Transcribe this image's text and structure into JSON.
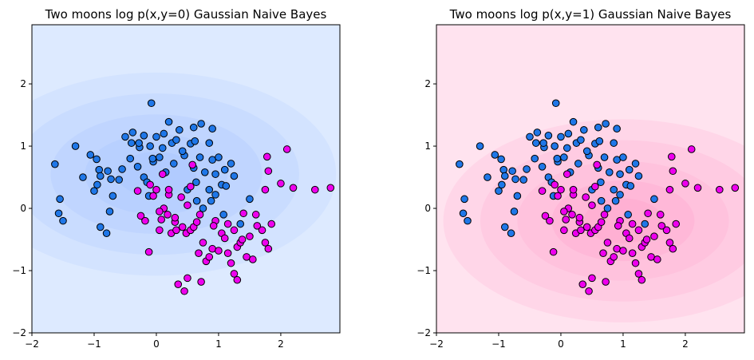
{
  "chart_data": [
    {
      "type": "scatter",
      "title": "Two moons log p(x,y=0) Gaussian Naive Bayes",
      "xlabel": "",
      "ylabel": "",
      "xlim": [
        -2,
        2.95
      ],
      "ylim": [
        -2,
        2.95
      ],
      "xticks": [
        -2,
        -1,
        0,
        1,
        2
      ],
      "yticks": [
        -2,
        -1,
        0,
        1,
        2
      ],
      "xtick_labels": [
        "−2",
        "−1",
        "0",
        "1",
        "2"
      ],
      "ytick_labels": [
        "−2",
        "−1",
        "0",
        "1",
        "2"
      ],
      "grid": false,
      "background": {
        "type": "contour",
        "center": [
          0.0,
          0.55
        ],
        "sd": [
          0.85,
          0.48
        ],
        "colors": [
          "#ddeaff",
          "#d3e3ff",
          "#c9dcff",
          "#c0d5ff",
          "#b8d0ff",
          "#b1cbff"
        ]
      },
      "series_colors": [
        "#1f77e8",
        "#ee00ee"
      ]
    },
    {
      "type": "scatter",
      "title": "Two moons log p(x,y=1) Gaussian Naive Bayes",
      "xlabel": "",
      "ylabel": "",
      "xlim": [
        -2,
        2.95
      ],
      "ylim": [
        -2,
        2.95
      ],
      "xticks": [
        -2,
        -1,
        0,
        1,
        2
      ],
      "yticks": [
        -2,
        -1,
        0,
        1,
        2
      ],
      "xtick_labels": [
        "−2",
        "−1",
        "0",
        "1",
        "2"
      ],
      "ytick_labels": [
        "−2",
        "−1",
        "0",
        "1",
        "2"
      ],
      "grid": false,
      "background": {
        "type": "contour",
        "center": [
          1.0,
          -0.2
        ],
        "sd": [
          0.85,
          0.48
        ],
        "colors": [
          "#ffe3ef",
          "#ffd6e8",
          "#ffcbe2",
          "#ffc2dd",
          "#ffb8d8",
          "#ffb0d3"
        ]
      },
      "series_colors": [
        "#1f77e8",
        "#ee00ee"
      ]
    }
  ],
  "points": {
    "class0": [
      [
        -1.63,
        0.71
      ],
      [
        -1.3,
        1.0
      ],
      [
        -1.18,
        0.5
      ],
      [
        -1.06,
        0.86
      ],
      [
        -0.96,
        0.79
      ],
      [
        -0.92,
        0.62
      ],
      [
        -1.0,
        0.28
      ],
      [
        -0.95,
        0.38
      ],
      [
        -0.9,
        0.52
      ],
      [
        -0.78,
        0.6
      ],
      [
        -0.73,
        0.47
      ],
      [
        -0.7,
        0.2
      ],
      [
        -0.6,
        0.46
      ],
      [
        -0.55,
        0.63
      ],
      [
        -0.42,
        0.8
      ],
      [
        -0.4,
        1.05
      ],
      [
        -0.38,
        1.22
      ],
      [
        -0.27,
        0.98
      ],
      [
        -0.3,
        0.67
      ],
      [
        -0.2,
        0.5
      ],
      [
        -0.2,
        1.17
      ],
      [
        -0.1,
        1.0
      ],
      [
        -0.05,
        0.75
      ],
      [
        0.05,
        0.82
      ],
      [
        -0.08,
        1.69
      ],
      [
        0.0,
        1.15
      ],
      [
        0.12,
        1.2
      ],
      [
        0.15,
        0.58
      ],
      [
        0.25,
        1.05
      ],
      [
        0.2,
        1.39
      ],
      [
        0.37,
        1.26
      ],
      [
        0.45,
        0.85
      ],
      [
        0.55,
        1.04
      ],
      [
        0.6,
        0.65
      ],
      [
        0.7,
        0.82
      ],
      [
        0.72,
        1.36
      ],
      [
        0.78,
        0.58
      ],
      [
        0.85,
        1.05
      ],
      [
        0.9,
        0.78
      ],
      [
        0.95,
        0.55
      ],
      [
        1.0,
        0.82
      ],
      [
        1.05,
        0.38
      ],
      [
        1.1,
        0.62
      ],
      [
        1.2,
        0.72
      ],
      [
        0.64,
        0.42
      ],
      [
        0.5,
        0.3
      ],
      [
        0.85,
        0.3
      ],
      [
        0.6,
        1.3
      ],
      [
        0.9,
        1.28
      ],
      [
        0.65,
        0.12
      ],
      [
        1.5,
        0.15
      ],
      [
        1.25,
        0.52
      ],
      [
        0.95,
        0.22
      ],
      [
        1.35,
        -0.25
      ],
      [
        -0.12,
        0.2
      ],
      [
        -1.55,
        0.15
      ],
      [
        -1.57,
        -0.08
      ],
      [
        -1.5,
        -0.2
      ],
      [
        -0.9,
        -0.3
      ],
      [
        -0.8,
        -0.4
      ],
      [
        -0.75,
        -0.05
      ],
      [
        -0.5,
        1.15
      ],
      [
        -0.28,
        1.05
      ],
      [
        0.32,
        1.1
      ],
      [
        0.75,
        0.0
      ],
      [
        0.88,
        0.12
      ],
      [
        1.08,
        -0.1
      ],
      [
        0.42,
        0.92
      ],
      [
        -0.15,
        0.42
      ],
      [
        -0.06,
        0.8
      ],
      [
        1.12,
        0.36
      ],
      [
        0.1,
        0.97
      ],
      [
        0.28,
        0.72
      ],
      [
        0.62,
        1.08
      ]
    ],
    "class1": [
      [
        -0.3,
        0.28
      ],
      [
        -0.25,
        -0.12
      ],
      [
        -0.18,
        -0.2
      ],
      [
        -0.12,
        -0.7
      ],
      [
        0.0,
        0.3
      ],
      [
        -0.05,
        0.2
      ],
      [
        0.05,
        -0.35
      ],
      [
        0.08,
        -0.18
      ],
      [
        0.12,
        0.0
      ],
      [
        0.18,
        -0.1
      ],
      [
        0.2,
        0.22
      ],
      [
        0.24,
        -0.4
      ],
      [
        0.3,
        -0.22
      ],
      [
        0.32,
        -0.35
      ],
      [
        0.4,
        0.18
      ],
      [
        0.42,
        -0.3
      ],
      [
        0.48,
        -0.4
      ],
      [
        0.5,
        0.05
      ],
      [
        0.55,
        -0.35
      ],
      [
        0.6,
        -0.3
      ],
      [
        0.65,
        -0.22
      ],
      [
        0.68,
        -0.72
      ],
      [
        0.7,
        -0.1
      ],
      [
        0.75,
        -0.55
      ],
      [
        0.8,
        -0.85
      ],
      [
        0.85,
        -0.78
      ],
      [
        0.9,
        -0.65
      ],
      [
        0.95,
        -0.2
      ],
      [
        1.0,
        -0.68
      ],
      [
        1.05,
        -0.4
      ],
      [
        1.1,
        -0.48
      ],
      [
        1.15,
        -0.72
      ],
      [
        1.2,
        -0.88
      ],
      [
        1.25,
        -0.35
      ],
      [
        1.3,
        -0.62
      ],
      [
        1.35,
        -0.55
      ],
      [
        1.4,
        -0.08
      ],
      [
        1.45,
        -0.78
      ],
      [
        1.5,
        -0.45
      ],
      [
        1.55,
        -0.82
      ],
      [
        1.6,
        -0.1
      ],
      [
        1.7,
        -0.35
      ],
      [
        1.75,
        -0.55
      ],
      [
        1.8,
        -0.65
      ],
      [
        1.85,
        -0.25
      ],
      [
        1.75,
        0.3
      ],
      [
        1.8,
        0.6
      ],
      [
        1.78,
        0.83
      ],
      [
        2.0,
        0.4
      ],
      [
        2.1,
        0.95
      ],
      [
        2.2,
        0.33
      ],
      [
        2.55,
        0.3
      ],
      [
        2.8,
        0.33
      ],
      [
        1.25,
        -1.05
      ],
      [
        1.3,
        -1.15
      ],
      [
        0.35,
        -1.22
      ],
      [
        0.5,
        -1.12
      ],
      [
        0.45,
        -1.33
      ],
      [
        0.72,
        -1.18
      ],
      [
        0.1,
        0.55
      ],
      [
        0.2,
        0.3
      ],
      [
        0.58,
        0.7
      ],
      [
        0.3,
        -0.15
      ],
      [
        0.55,
        0.35
      ],
      [
        0.92,
        -0.28
      ],
      [
        1.15,
        -0.25
      ],
      [
        -0.1,
        0.38
      ],
      [
        0.05,
        -0.05
      ],
      [
        1.62,
        -0.28
      ],
      [
        1.38,
        -0.5
      ]
    ]
  }
}
